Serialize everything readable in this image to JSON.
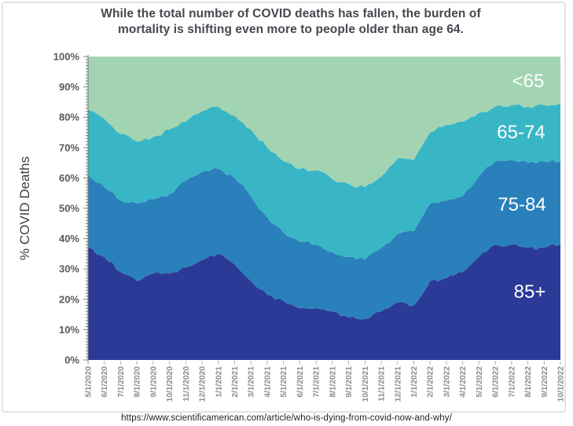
{
  "title": {
    "line1": "While the total number of COVID deaths has fallen, the burden of",
    "line2": "mortality is shifting even more to people older than age 64."
  },
  "caption": {
    "url": "https://www.scientificamerican.com/article/who-is-dying-from-covid-now-and-why/"
  },
  "colors": {
    "age_85_plus": "#2b3a97",
    "age_75_84": "#2a80ba",
    "age_65_74": "#39b6c5",
    "age_under_65": "#a2d4b2",
    "axis": "#808080",
    "x_tick": "#b3b3b3",
    "y_tick_label": "#595959",
    "x_tick_label": "#8c8c8c",
    "title_text": "#47474f",
    "in_plot_label": "#ffffff"
  },
  "chart_data": {
    "type": "area",
    "stacked": true,
    "stack_total": 100,
    "grid": false,
    "legend_position": "labels-inside-plot",
    "title": "While the total number of COVID deaths has fallen, the burden of mortality is shifting even more to people older than age 64.",
    "xlabel": "",
    "ylabel": "% COVID Deaths",
    "ylim": [
      0,
      100
    ],
    "y_ticks": [
      "0%",
      "10%",
      "20%",
      "30%",
      "40%",
      "50%",
      "60%",
      "70%",
      "80%",
      "90%",
      "100%"
    ],
    "categories": [
      "5/1/2020",
      "6/1/2020",
      "7/1/2020",
      "8/1/2020",
      "9/1/2020",
      "10/1/2020",
      "11/1/2020",
      "12/1/2020",
      "1/1/2021",
      "2/1/2021",
      "3/1/2021",
      "4/1/2021",
      "5/1/2021",
      "6/1/2021",
      "7/1/2021",
      "8/1/2021",
      "9/1/2021",
      "10/1/2021",
      "11/1/2021",
      "12/1/2021",
      "1/1/2022",
      "2/1/2022",
      "3/1/2022",
      "4/1/2022",
      "5/1/2022",
      "6/1/2022",
      "7/1/2022",
      "8/1/2022",
      "9/1/2022",
      "10/1/2022"
    ],
    "series": [
      {
        "name": "85+",
        "color": "#2b3a97",
        "values": [
          37,
          34,
          29,
          26,
          28.5,
          28.5,
          30.5,
          33,
          35,
          31.5,
          26,
          21.5,
          19.5,
          17,
          17,
          16,
          14,
          13.5,
          16,
          19,
          18,
          26,
          27,
          29,
          34,
          38,
          38,
          37,
          37,
          38
        ]
      },
      {
        "name": "75-84",
        "color": "#2a80ba",
        "values": [
          24,
          23,
          23.5,
          25.5,
          24.5,
          26,
          28.5,
          29,
          28,
          28.5,
          28,
          25.5,
          22.5,
          22,
          21,
          19.5,
          20,
          19.5,
          21,
          22.5,
          24.5,
          25.5,
          25.5,
          25,
          26.5,
          27.5,
          28,
          28,
          28.5,
          27.5
        ]
      },
      {
        "name": "65-74",
        "color": "#39b6c5",
        "values": [
          21.5,
          22.5,
          22,
          20.5,
          20.5,
          21.5,
          19.5,
          20,
          20.5,
          20.5,
          22,
          23,
          23.5,
          24,
          24.5,
          24,
          24,
          24,
          23.5,
          25,
          23.5,
          23.5,
          25,
          24.5,
          21,
          18,
          18,
          18.5,
          18.5,
          19
        ]
      },
      {
        "name": "<65",
        "color": "#a2d4b2",
        "values": [
          17.5,
          20.5,
          25.5,
          28,
          26.5,
          24,
          21.5,
          18,
          16.5,
          19.5,
          24,
          30,
          34.5,
          37,
          37.5,
          40.5,
          42,
          43,
          39.5,
          33.5,
          34,
          25,
          22.5,
          21.5,
          18.5,
          16.5,
          16,
          16.5,
          16,
          15.5
        ]
      }
    ]
  }
}
